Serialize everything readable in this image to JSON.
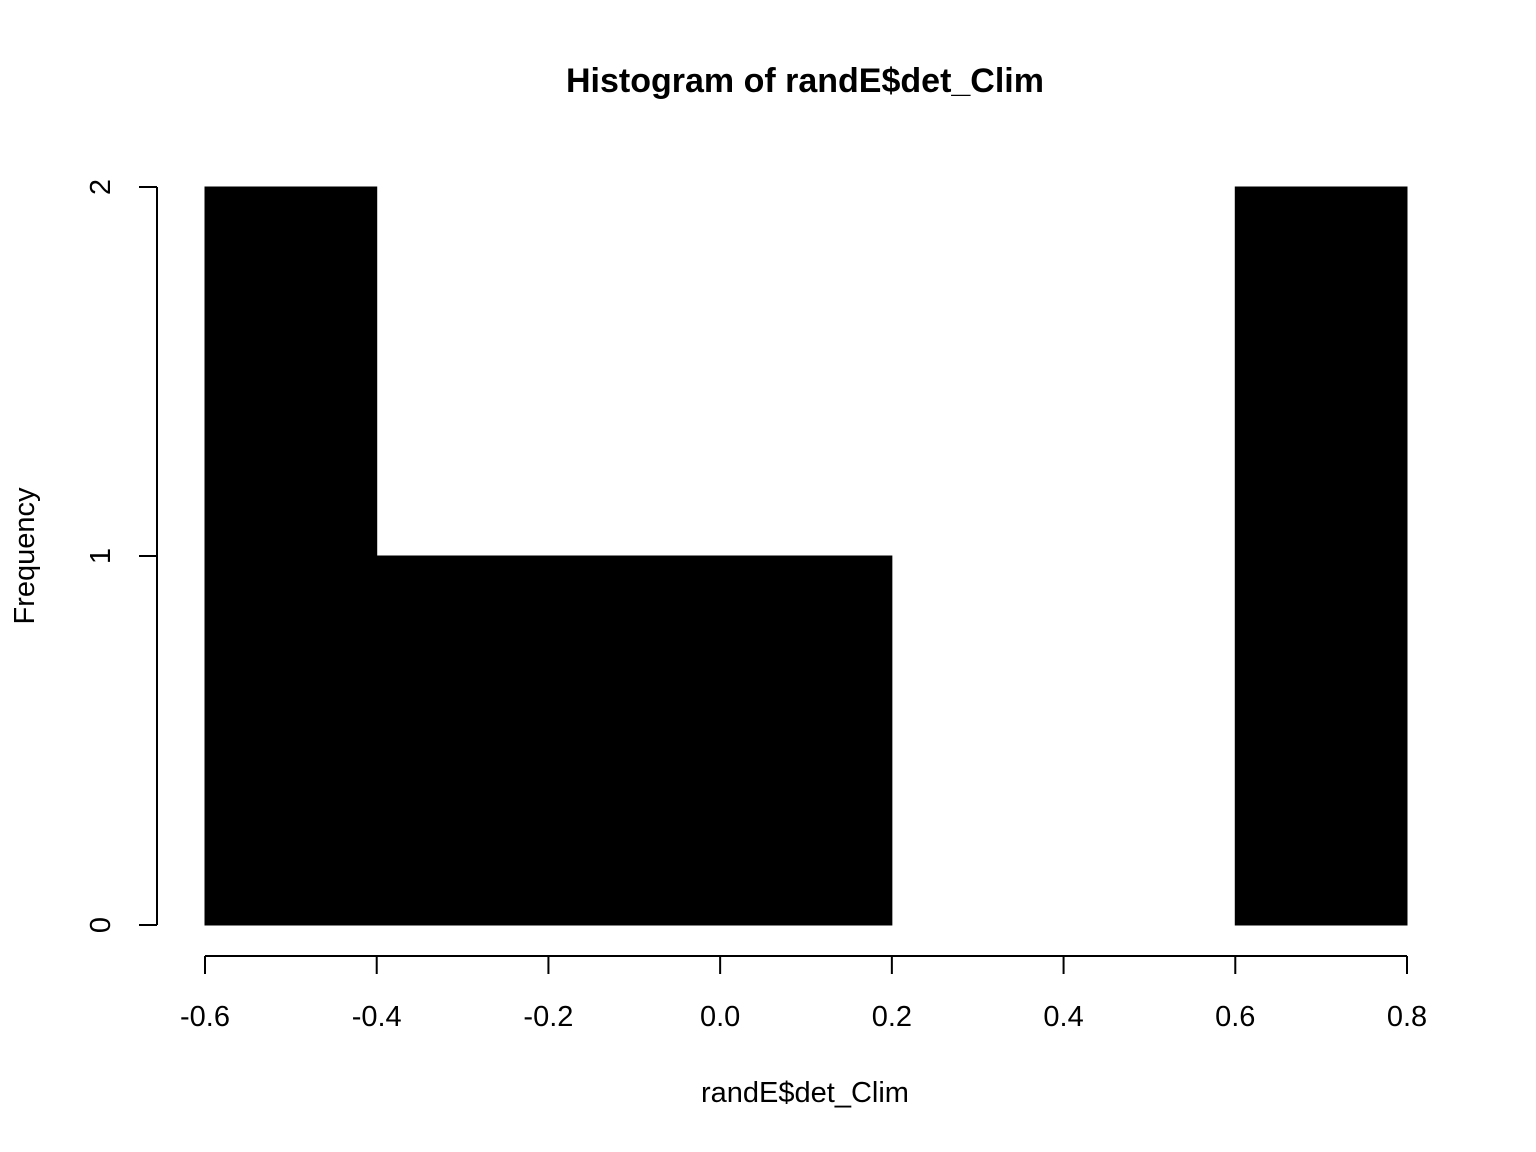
{
  "chart_data": {
    "type": "bar",
    "histogram": true,
    "title": "Histogram of randE$det_Clim",
    "xlabel": "randE$det_Clim",
    "ylabel": "Frequency",
    "bins": [
      {
        "x0": -0.6,
        "x1": -0.4,
        "count": 2
      },
      {
        "x0": -0.4,
        "x1": -0.2,
        "count": 1
      },
      {
        "x0": -0.2,
        "x1": 0.0,
        "count": 1
      },
      {
        "x0": 0.0,
        "x1": 0.2,
        "count": 1
      },
      {
        "x0": 0.2,
        "x1": 0.4,
        "count": 0
      },
      {
        "x0": 0.4,
        "x1": 0.6,
        "count": 0
      },
      {
        "x0": 0.6,
        "x1": 0.8,
        "count": 2
      }
    ],
    "xlim": [
      -0.6,
      0.8
    ],
    "ylim": [
      0,
      2
    ],
    "xticks": [
      {
        "value": -0.6,
        "label": "-0.6"
      },
      {
        "value": -0.4,
        "label": "-0.4"
      },
      {
        "value": -0.2,
        "label": "-0.2"
      },
      {
        "value": 0.0,
        "label": "0.0"
      },
      {
        "value": 0.2,
        "label": "0.2"
      },
      {
        "value": 0.4,
        "label": "0.4"
      },
      {
        "value": 0.6,
        "label": "0.6"
      },
      {
        "value": 0.8,
        "label": "0.8"
      }
    ],
    "yticks": [
      {
        "value": 0,
        "label": "0"
      },
      {
        "value": 1,
        "label": "1"
      },
      {
        "value": 2,
        "label": "2"
      }
    ],
    "bar_color": "#000000",
    "grid": false,
    "legend": "none"
  }
}
